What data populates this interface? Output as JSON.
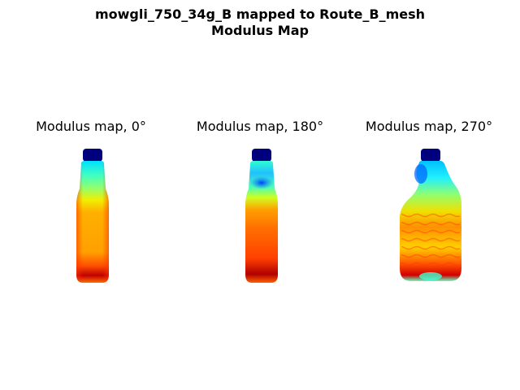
{
  "figure": {
    "title_line1": "mowgli_750_34g_B mapped to Route_B_mesh",
    "title_line2": "Modulus Map"
  },
  "panels": [
    {
      "title": "Modulus map, 0°"
    },
    {
      "title": "Modulus map, 180°"
    },
    {
      "title": "Modulus map, 270°"
    }
  ],
  "colormap": {
    "name": "jet",
    "colors": {
      "cap": "#00007f",
      "low": "#0050ff",
      "cyan": "#00e0ff",
      "green": "#60ff90",
      "yellow": "#f0f000",
      "orange": "#ffa800",
      "red": "#ff3800",
      "dark_red": "#a80000"
    }
  }
}
